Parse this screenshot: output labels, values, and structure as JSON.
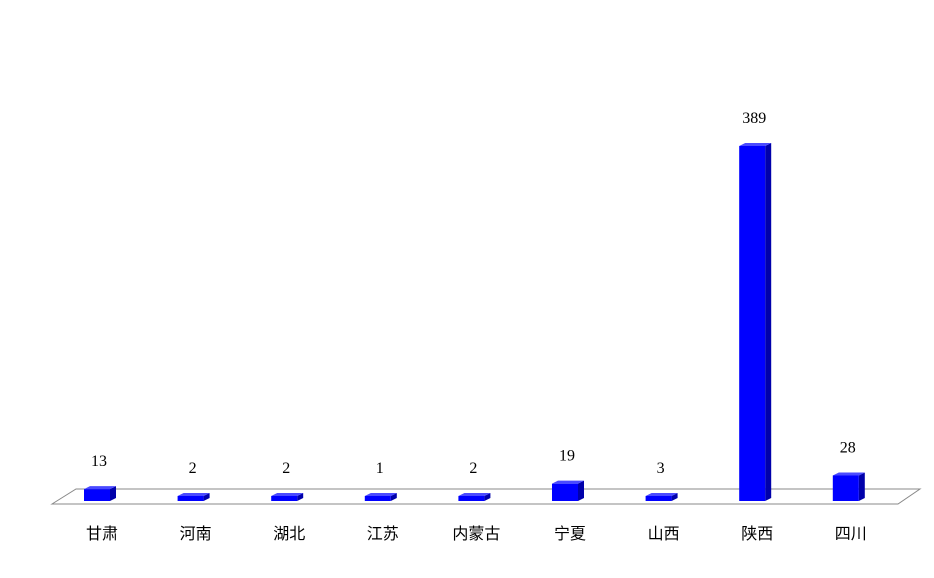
{
  "chart_data": {
    "type": "bar",
    "categories": [
      "甘肃",
      "河南",
      "湖北",
      "江苏",
      "内蒙古",
      "宁夏",
      "山西",
      "陕西",
      "四川"
    ],
    "values": [
      13,
      2,
      2,
      1,
      2,
      19,
      3,
      389,
      28
    ],
    "title": "",
    "xlabel": "",
    "ylabel": "",
    "ylim": [
      0,
      389
    ],
    "grid": false,
    "legend": "none",
    "bar_color": "#0000FF",
    "bar_side_color": "#0000AA",
    "bar_top_color": "#4A4AFF"
  }
}
